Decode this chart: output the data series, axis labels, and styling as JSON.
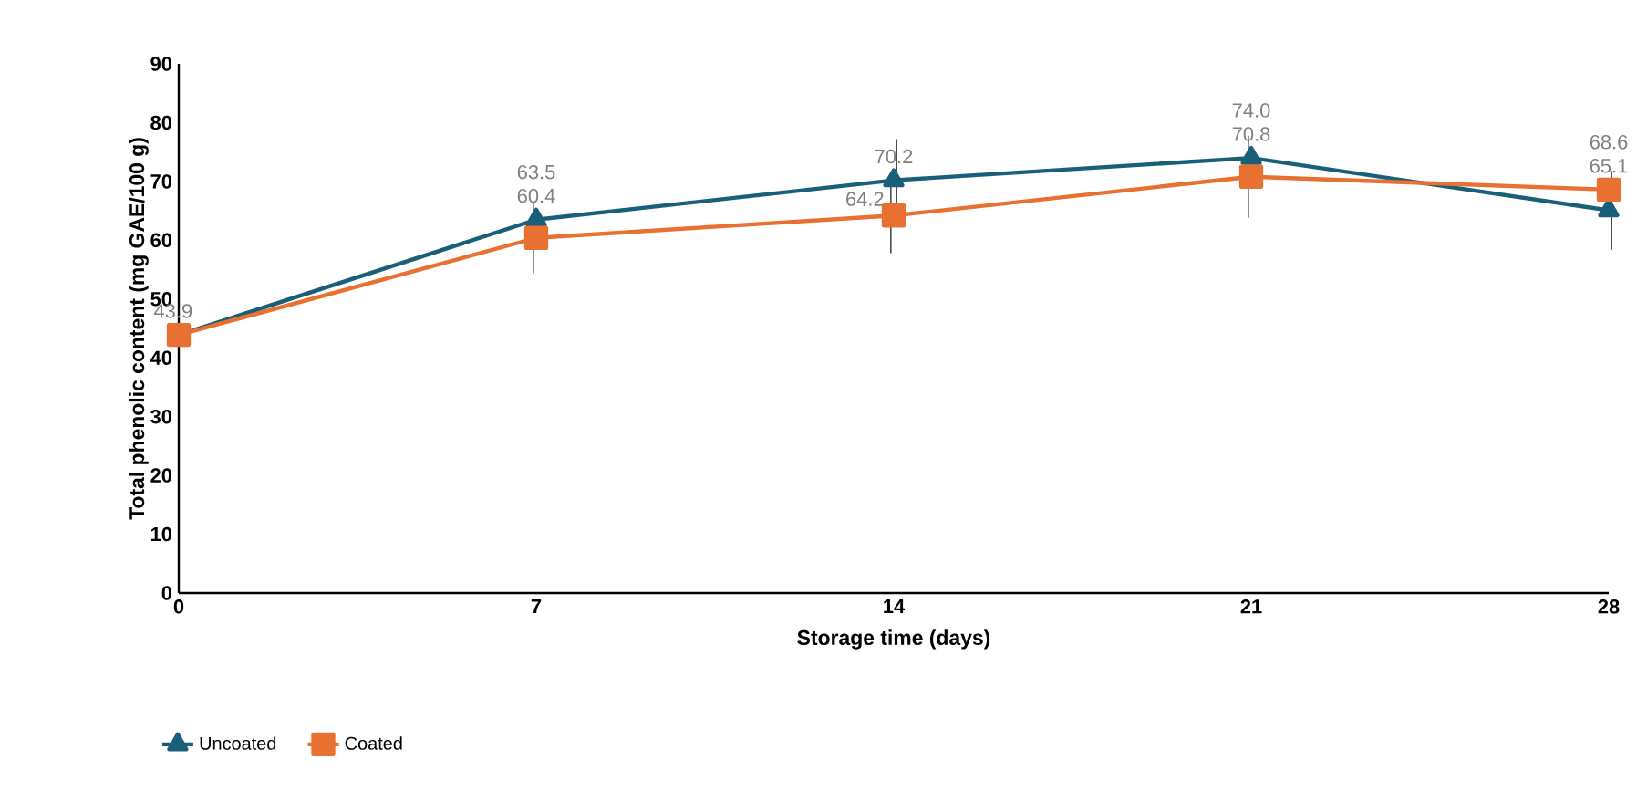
{
  "chart_data": {
    "type": "line",
    "xlabel": "Storage time (days)",
    "ylabel": "Total phenolic content (mg GAE/100 g)",
    "categories": [
      "0",
      "7",
      "14",
      "21",
      "28"
    ],
    "ylim": [
      0,
      90
    ],
    "yticks": [
      0,
      10,
      20,
      30,
      40,
      50,
      60,
      70,
      80,
      90
    ],
    "series": [
      {
        "name": "Uncoated",
        "color": "#1a5f7a",
        "marker": "triangle",
        "values": [
          43.9,
          63.5,
          70.2,
          74.0,
          65.1
        ],
        "errors": [
          null,
          null,
          7,
          null,
          6.7
        ],
        "value_labels": [
          null,
          "63.5",
          "70.2",
          "74.0",
          "65.1"
        ]
      },
      {
        "name": "Coated",
        "color": "#e87030",
        "marker": "square",
        "values": [
          43.9,
          60.4,
          64.2,
          70.8,
          68.6
        ],
        "errors": [
          2,
          6,
          6.4,
          7,
          null
        ],
        "value_labels": [
          "43.9",
          "60.4",
          "64.2",
          "70.8",
          "68.6"
        ]
      }
    ],
    "legend": "bottom left",
    "grid": false
  }
}
